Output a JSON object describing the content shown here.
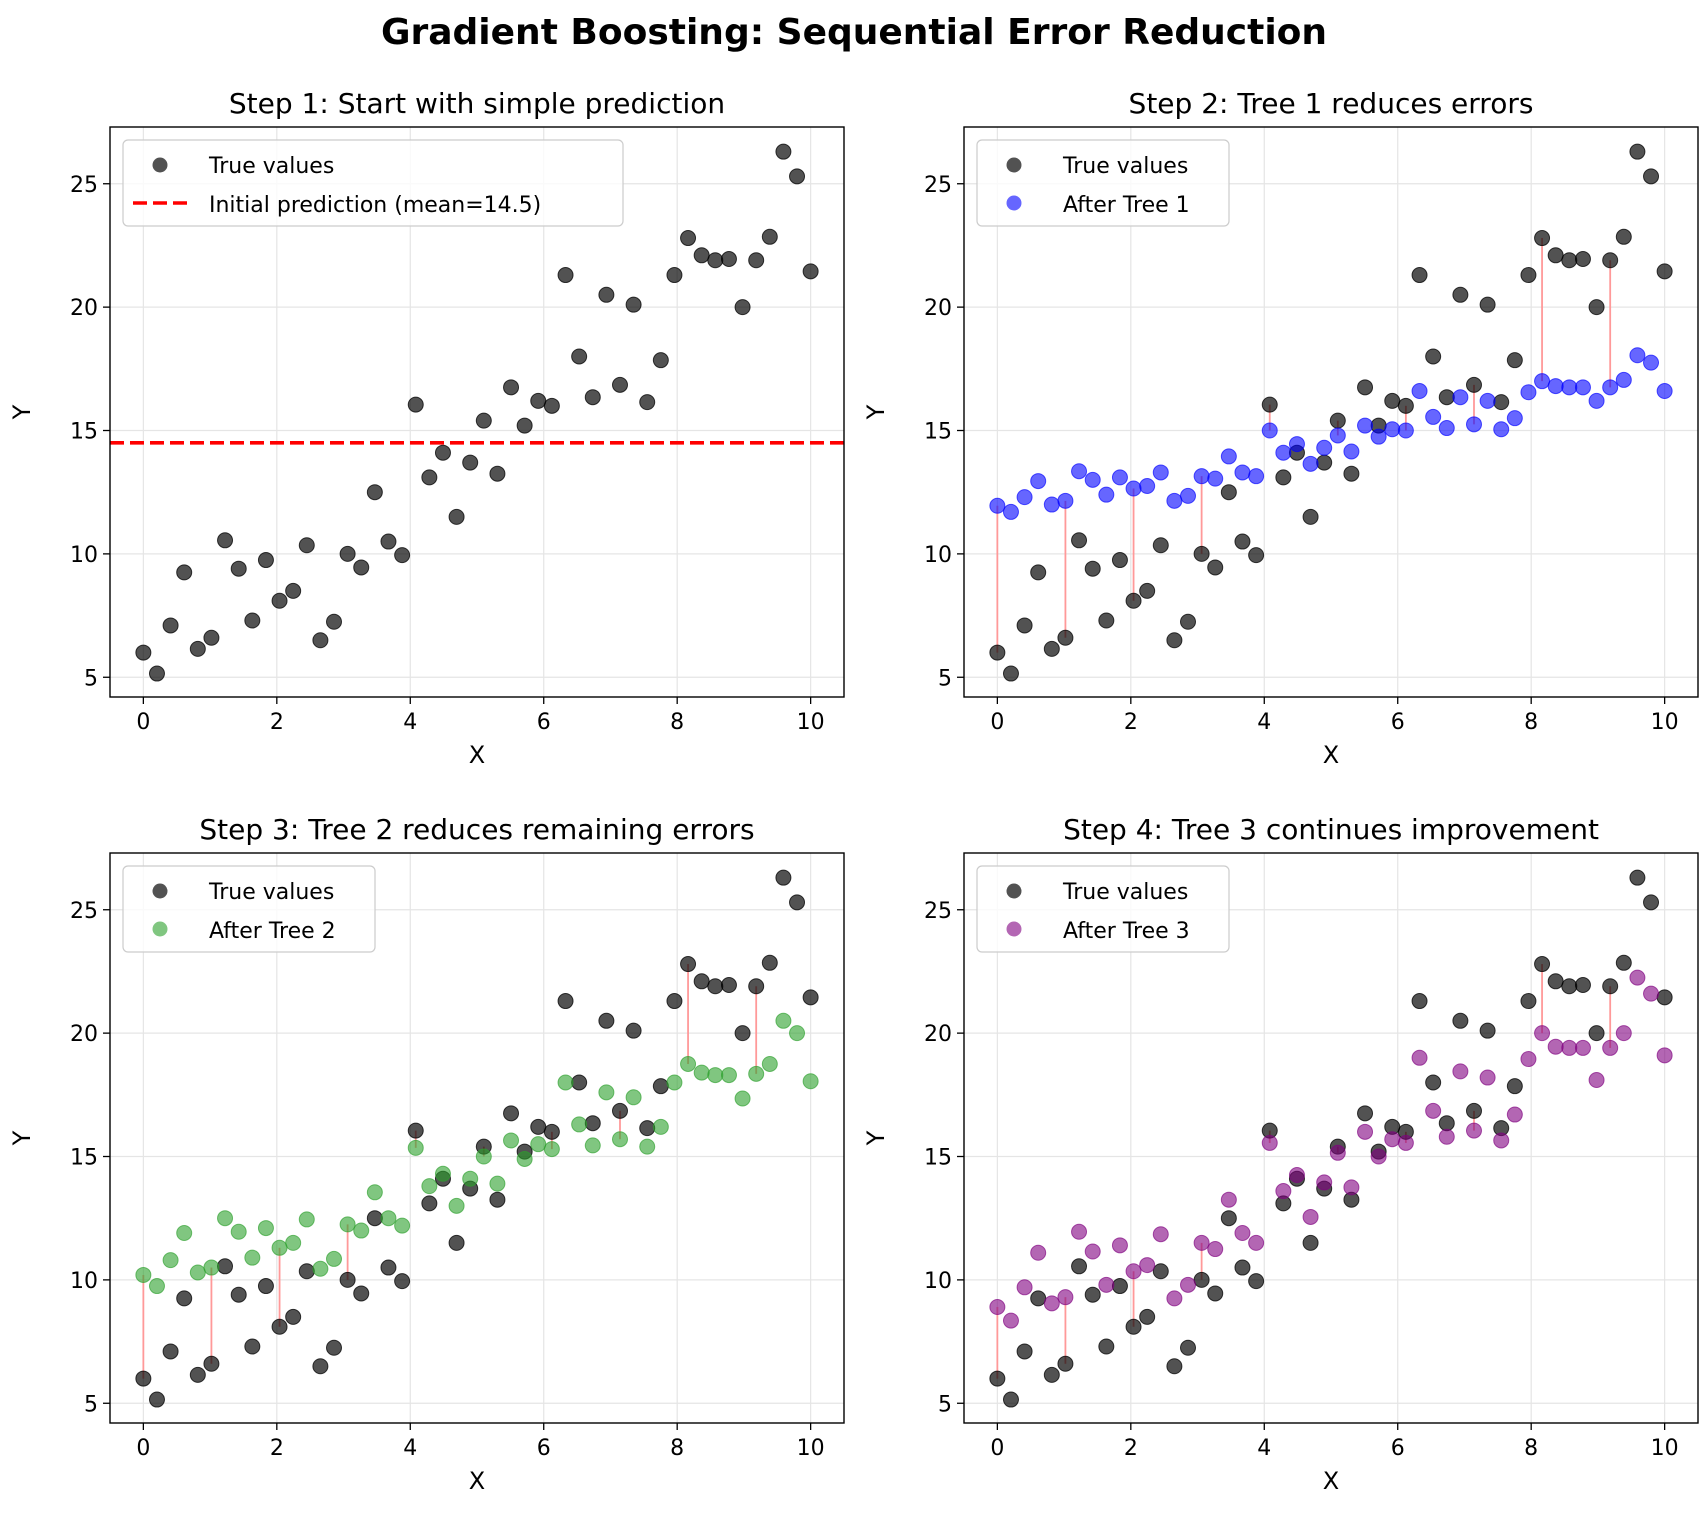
{
  "figure_title": "Gradient Boosting: Sequential Error Reduction",
  "colors": {
    "true_values": "#000000",
    "initial": "#ff0000",
    "tree1": "#0000ff",
    "tree2": "#2ca02c",
    "tree3": "#800080",
    "residual": "#ff9999",
    "grid": "#e5e5e5"
  },
  "chart_data": [
    {
      "type": "scatter",
      "title": "Step 1: Start with simple prediction",
      "xlabel": "X",
      "ylabel": "Y",
      "xlim": [
        -0.5,
        10.5
      ],
      "ylim": [
        4.2,
        27.3
      ],
      "xticks": [
        0,
        2,
        4,
        6,
        8,
        10
      ],
      "yticks": [
        5,
        10,
        15,
        20,
        25
      ],
      "grid": true,
      "legend_position": "top-left",
      "x": [
        0,
        0.204,
        0.408,
        0.612,
        0.816,
        1.02,
        1.224,
        1.429,
        1.633,
        1.837,
        2.041,
        2.245,
        2.449,
        2.653,
        2.857,
        3.061,
        3.265,
        3.469,
        3.673,
        3.878,
        4.082,
        4.286,
        4.49,
        4.694,
        4.898,
        5.102,
        5.306,
        5.51,
        5.714,
        5.918,
        6.122,
        6.327,
        6.531,
        6.735,
        6.939,
        7.143,
        7.347,
        7.551,
        7.755,
        7.959,
        8.163,
        8.367,
        8.571,
        8.776,
        8.98,
        9.184,
        9.388,
        9.592,
        9.796,
        10
      ],
      "true_values": [
        6.0,
        5.15,
        7.1,
        9.25,
        6.15,
        6.6,
        10.55,
        9.4,
        7.3,
        9.75,
        8.1,
        8.5,
        10.35,
        6.5,
        7.25,
        10.0,
        9.45,
        12.5,
        10.5,
        9.95,
        16.05,
        13.1,
        14.1,
        11.5,
        13.7,
        15.4,
        13.25,
        16.75,
        15.2,
        16.2,
        16.0,
        21.3,
        18.0,
        16.35,
        20.5,
        16.85,
        20.1,
        16.15,
        17.85,
        21.3,
        22.8,
        22.1,
        21.9,
        21.95,
        20.0,
        21.9,
        22.85,
        26.3,
        25.3,
        21.45
      ],
      "series": [
        {
          "name": "True values",
          "kind": "points",
          "values_ref": "true_values"
        },
        {
          "name": "Initial prediction (mean=14.5)",
          "kind": "hline",
          "value": 14.5
        }
      ],
      "legend": [
        "True values",
        "Initial prediction (mean=14.5)"
      ]
    },
    {
      "type": "scatter",
      "title": "Step 2: Tree 1 reduces errors",
      "xlabel": "X",
      "ylabel": "Y",
      "xlim": [
        -0.5,
        10.5
      ],
      "ylim": [
        4.2,
        27.3
      ],
      "xticks": [
        0,
        2,
        4,
        6,
        8,
        10
      ],
      "yticks": [
        5,
        10,
        15,
        20,
        25
      ],
      "grid": true,
      "legend_position": "top-left",
      "residual_indices": [
        0,
        5,
        10,
        15,
        20,
        25,
        30,
        35,
        40,
        45
      ],
      "series": [
        {
          "name": "True values",
          "kind": "points",
          "values_ref": "true_values"
        },
        {
          "name": "After Tree 1",
          "kind": "points",
          "values": [
            11.95,
            11.7,
            12.3,
            12.95,
            12.0,
            12.15,
            13.35,
            13.0,
            12.4,
            13.1,
            12.65,
            12.75,
            13.3,
            12.15,
            12.35,
            13.15,
            13.05,
            13.95,
            13.3,
            13.15,
            15.0,
            14.1,
            14.45,
            13.65,
            14.3,
            14.8,
            14.15,
            15.2,
            14.75,
            15.05,
            15.0,
            16.6,
            15.55,
            15.1,
            16.35,
            15.25,
            16.2,
            15.05,
            15.5,
            16.55,
            17.0,
            16.8,
            16.75,
            16.75,
            16.2,
            16.75,
            17.05,
            18.05,
            17.75,
            16.6
          ]
        }
      ],
      "legend": [
        "True values",
        "After Tree 1"
      ]
    },
    {
      "type": "scatter",
      "title": "Step 3: Tree 2 reduces remaining errors",
      "xlabel": "X",
      "ylabel": "Y",
      "xlim": [
        -0.5,
        10.5
      ],
      "ylim": [
        4.2,
        27.3
      ],
      "xticks": [
        0,
        2,
        4,
        6,
        8,
        10
      ],
      "yticks": [
        5,
        10,
        15,
        20,
        25
      ],
      "grid": true,
      "legend_position": "top-left",
      "residual_indices": [
        0,
        5,
        10,
        15,
        20,
        25,
        30,
        35,
        40,
        45
      ],
      "series": [
        {
          "name": "True values",
          "kind": "points",
          "values_ref": "true_values"
        },
        {
          "name": "After Tree 2",
          "kind": "points",
          "values": [
            10.2,
            9.75,
            10.8,
            11.9,
            10.3,
            10.5,
            12.5,
            11.95,
            10.9,
            12.1,
            11.3,
            11.5,
            12.45,
            10.45,
            10.85,
            12.25,
            12.0,
            13.55,
            12.5,
            12.2,
            15.35,
            13.8,
            14.3,
            13.0,
            14.1,
            15.0,
            13.9,
            15.65,
            14.9,
            15.5,
            15.3,
            18.0,
            16.3,
            15.45,
            17.6,
            15.7,
            17.4,
            15.4,
            16.2,
            18.0,
            18.75,
            18.4,
            18.3,
            18.3,
            17.35,
            18.35,
            18.75,
            20.5,
            20.0,
            18.05
          ]
        }
      ],
      "legend": [
        "True values",
        "After Tree 2"
      ]
    },
    {
      "type": "scatter",
      "title": "Step 4: Tree 3 continues improvement",
      "xlabel": "X",
      "ylabel": "Y",
      "xlim": [
        -0.5,
        10.5
      ],
      "ylim": [
        4.2,
        27.3
      ],
      "xticks": [
        0,
        2,
        4,
        6,
        8,
        10
      ],
      "yticks": [
        5,
        10,
        15,
        20,
        25
      ],
      "grid": true,
      "legend_position": "top-left",
      "residual_indices": [
        0,
        5,
        10,
        15,
        20,
        25,
        30,
        35,
        40,
        45
      ],
      "series": [
        {
          "name": "True values",
          "kind": "points",
          "values_ref": "true_values"
        },
        {
          "name": "After Tree 3",
          "kind": "points",
          "values": [
            8.9,
            8.35,
            9.7,
            11.1,
            9.05,
            9.3,
            11.95,
            11.15,
            9.8,
            11.4,
            10.35,
            10.6,
            11.85,
            9.25,
            9.8,
            11.5,
            11.25,
            13.25,
            11.9,
            11.5,
            15.55,
            13.6,
            14.25,
            12.55,
            13.95,
            15.15,
            13.75,
            16.0,
            15.0,
            15.7,
            15.55,
            19.0,
            16.85,
            15.8,
            18.45,
            16.05,
            18.2,
            15.65,
            16.7,
            18.95,
            20.0,
            19.45,
            19.4,
            19.4,
            18.1,
            19.4,
            20.0,
            22.25,
            21.6,
            19.1
          ]
        }
      ],
      "legend": [
        "True values",
        "After Tree 3"
      ]
    }
  ]
}
